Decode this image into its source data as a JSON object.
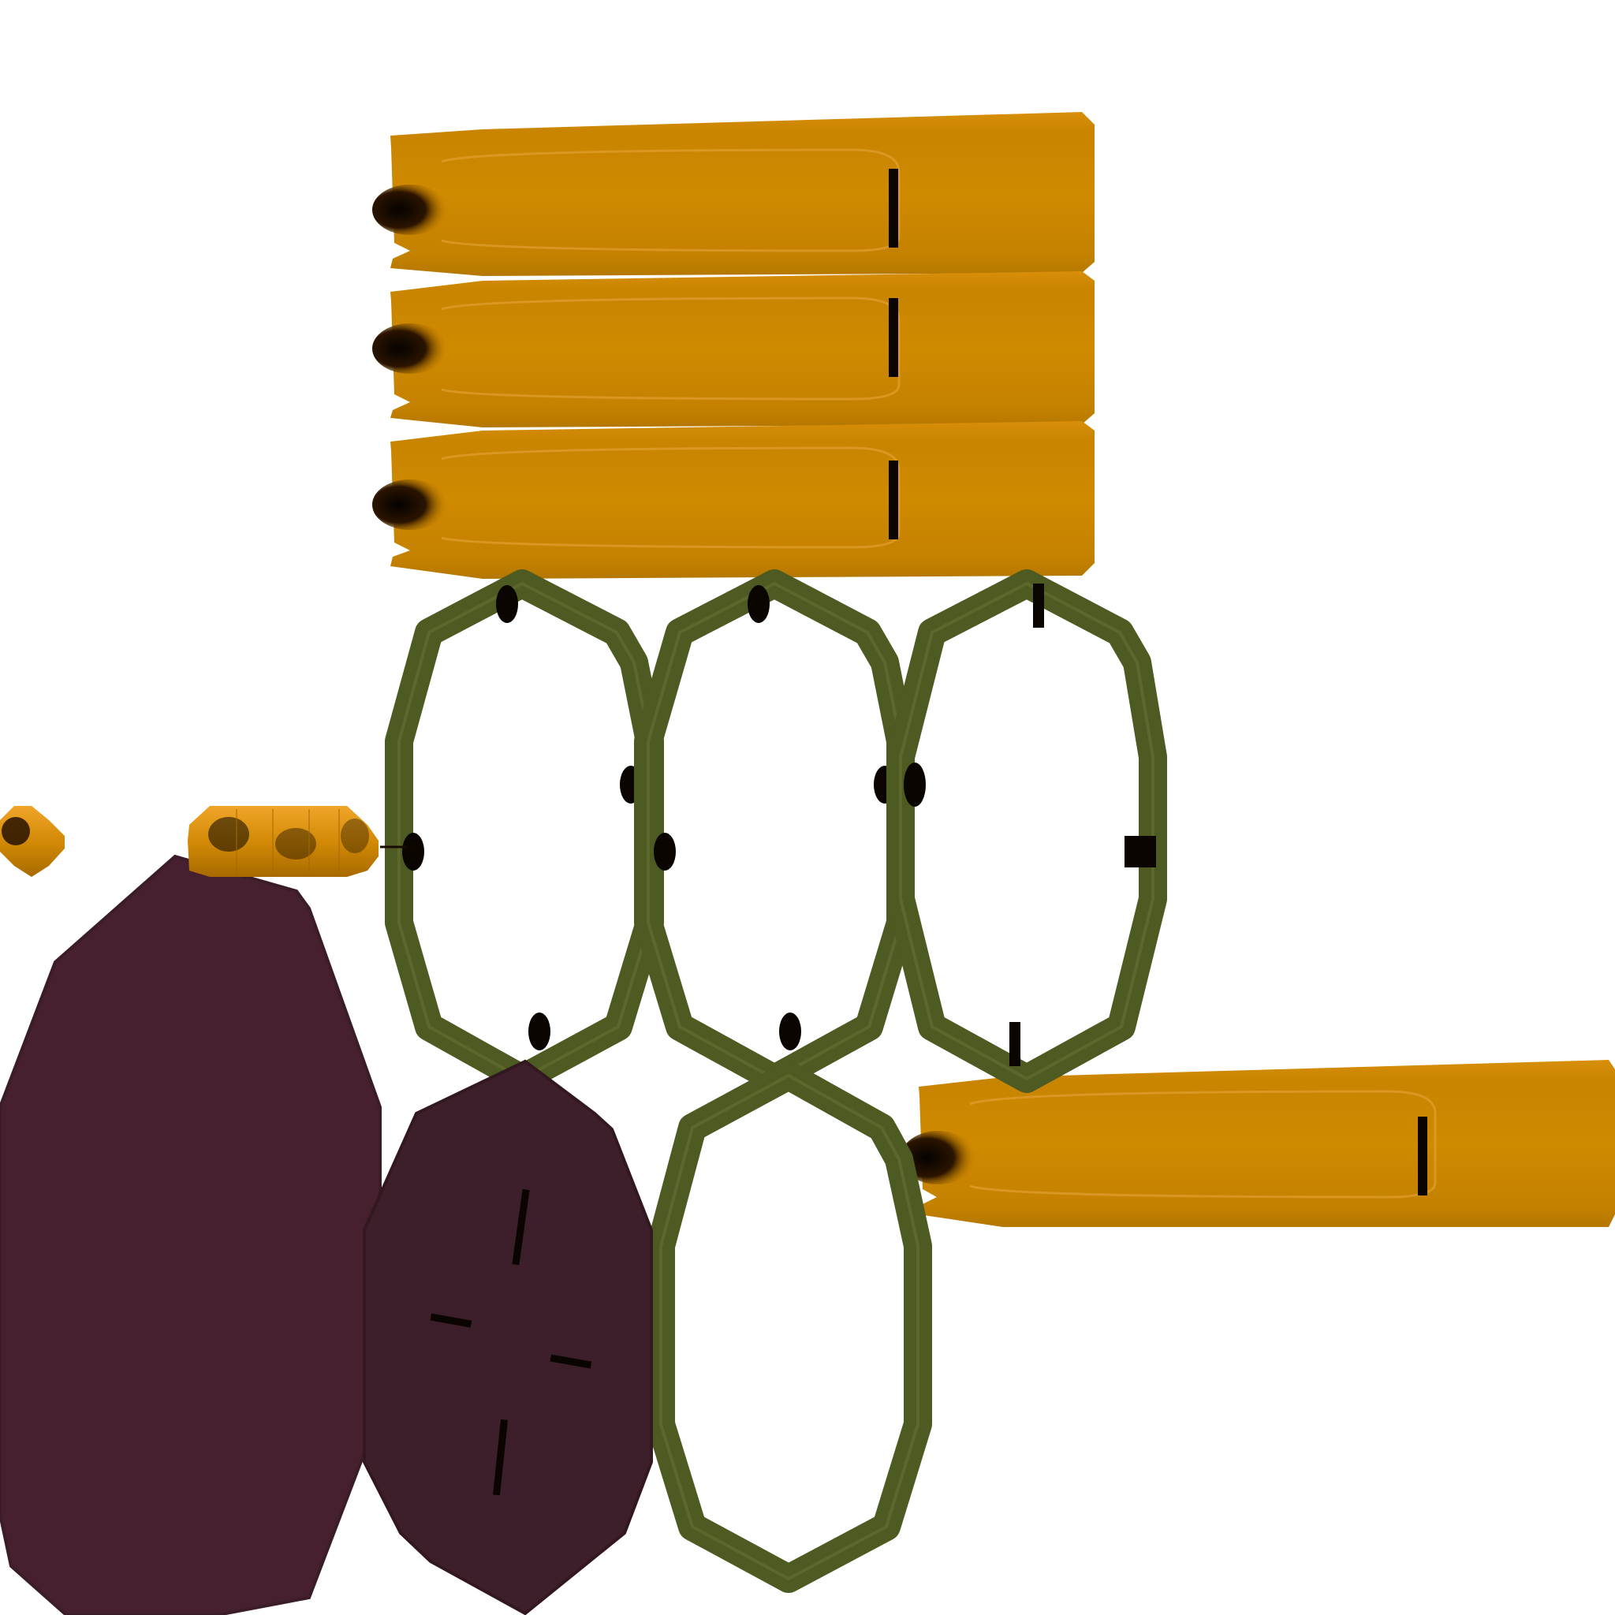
{
  "texture_atlas": {
    "background": "#ffffff",
    "colors": {
      "orange": "#c98400",
      "orange_light": "#e29a1a",
      "orange_dark": "#a86a00",
      "olive": "#4d5a22",
      "olive_light": "#5f6d2b",
      "purple": "#46202f",
      "purple_dark": "#3a1d28",
      "mark": "#0a0500"
    },
    "parts": {
      "planks": {
        "count": 4,
        "shape": "rounded-bar",
        "icon": "plank-texture"
      },
      "rings": {
        "count": 4,
        "shape": "octagon-ring",
        "icon": "ring-texture"
      },
      "disks": {
        "count": 2,
        "shape": "octagon-fill",
        "icon": "disk-texture"
      },
      "beads": {
        "count": 2,
        "shape": "bead-strip",
        "icon": "bead-texture"
      }
    }
  }
}
